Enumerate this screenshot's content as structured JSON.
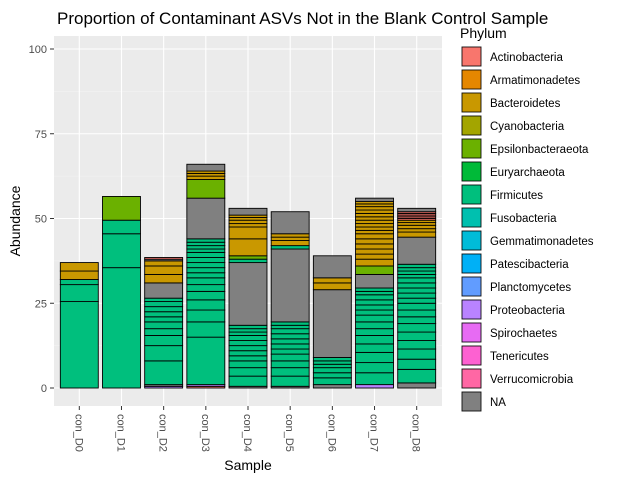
{
  "chart_data": {
    "type": "bar",
    "title": "Proportion of Contaminant ASVs Not in the Blank Control Sample",
    "xlabel": "Sample",
    "ylabel": "Abundance",
    "ylim": [
      0,
      100
    ],
    "yticks": [
      0,
      25,
      50,
      75,
      100
    ],
    "grid": true,
    "legend_title": "Phylum",
    "legend_position": "right",
    "categories": [
      "con_D0",
      "con_D1",
      "con_D2",
      "con_D3",
      "con_D4",
      "con_D5",
      "con_D6",
      "con_D7",
      "con_D8"
    ],
    "legend": [
      {
        "name": "Actinobacteria",
        "color": "#F8766D"
      },
      {
        "name": "Armatimonadetes",
        "color": "#E58700"
      },
      {
        "name": "Bacteroidetes",
        "color": "#C99800"
      },
      {
        "name": "Cyanobacteria",
        "color": "#A3A500"
      },
      {
        "name": "Epsilonbacteraeota",
        "color": "#6BB100"
      },
      {
        "name": "Euryarchaeota",
        "color": "#00BA38"
      },
      {
        "name": "Firmicutes",
        "color": "#00BF7D"
      },
      {
        "name": "Fusobacteria",
        "color": "#00C0AF"
      },
      {
        "name": "Gemmatimonadetes",
        "color": "#00BCD8"
      },
      {
        "name": "Patescibacteria",
        "color": "#00B0F6"
      },
      {
        "name": "Planctomycetes",
        "color": "#619CFF"
      },
      {
        "name": "Proteobacteria",
        "color": "#B983FF"
      },
      {
        "name": "Spirochaetes",
        "color": "#E76BF3"
      },
      {
        "name": "Tenericutes",
        "color": "#FD61D1"
      },
      {
        "name": "Verrucomicrobia",
        "color": "#FF67A4"
      },
      {
        "name": "NA",
        "color": "#808080"
      }
    ],
    "bars": [
      {
        "sample": "con_D0",
        "segments": [
          {
            "phylum": "Firmicutes",
            "values": [
              25.5,
              5.0,
              1.5
            ]
          },
          {
            "phylum": "Bacteroidetes",
            "values": [
              2.5,
              2.5
            ]
          }
        ]
      },
      {
        "sample": "con_D1",
        "segments": [
          {
            "phylum": "Firmicutes",
            "values": [
              35.5,
              10.0,
              4.0
            ]
          },
          {
            "phylum": "Epsilonbacteraeota",
            "values": [
              7.0
            ]
          }
        ]
      },
      {
        "sample": "con_D2",
        "segments": [
          {
            "phylum": "Proteobacteria",
            "values": [
              0.5
            ]
          },
          {
            "phylum": "NA",
            "values": [
              0.5
            ]
          },
          {
            "phylum": "Firmicutes",
            "values": [
              7.0,
              4.5,
              3.0,
              2.0,
              2.0,
              1.5,
              1.5,
              1.5,
              1.5,
              1.0
            ]
          },
          {
            "phylum": "NA",
            "values": [
              4.5
            ]
          },
          {
            "phylum": "Bacteroidetes",
            "values": [
              2.5,
              2.5,
              1.5
            ]
          },
          {
            "phylum": "NA",
            "values": [
              0.5
            ]
          },
          {
            "phylum": "Actinobacteria",
            "values": [
              0.5
            ]
          }
        ]
      },
      {
        "sample": "con_D3",
        "segments": [
          {
            "phylum": "Actinobacteria",
            "values": [
              0.5
            ]
          },
          {
            "phylum": "Proteobacteria",
            "values": [
              0.5
            ]
          },
          {
            "phylum": "Firmicutes",
            "values": [
              14.0,
              4.5,
              3.5,
              3.0,
              2.5,
              2.0,
              2.0,
              1.5,
              1.5,
              1.5,
              1.5,
              1.5,
              1.0,
              1.0,
              1.0,
              1.0
            ]
          },
          {
            "phylum": "NA",
            "values": [
              12.0
            ]
          },
          {
            "phylum": "Epsilonbacteraeota",
            "values": [
              5.5
            ]
          },
          {
            "phylum": "Bacteroidetes",
            "values": [
              1.0,
              0.8,
              0.7
            ]
          },
          {
            "phylum": "NA",
            "values": [
              2.0
            ]
          }
        ]
      },
      {
        "sample": "con_D4",
        "segments": [
          {
            "phylum": "NA",
            "values": [
              0.5
            ]
          },
          {
            "phylum": "Firmicutes",
            "values": [
              3.0,
              2.5,
              2.0,
              1.5,
              1.5,
              1.5,
              1.5,
              1.5,
              1.0,
              1.0,
              1.0
            ]
          },
          {
            "phylum": "NA",
            "values": [
              18.5
            ]
          },
          {
            "phylum": "Firmicutes",
            "values": [
              1.0
            ]
          },
          {
            "phylum": "Epsilonbacteraeota",
            "values": [
              1.0
            ]
          },
          {
            "phylum": "Bacteroidetes",
            "values": [
              5.0,
              3.5,
              1.0,
              1.0,
              0.8,
              0.7
            ]
          },
          {
            "phylum": "NA",
            "values": [
              2.0
            ]
          }
        ]
      },
      {
        "sample": "con_D5",
        "segments": [
          {
            "phylum": "NA",
            "values": [
              0.5
            ]
          },
          {
            "phylum": "Firmicutes",
            "values": [
              3.0,
              2.5,
              2.0,
              2.0,
              1.5,
              1.5,
              1.5,
              1.5,
              1.5,
              1.0,
              1.0
            ]
          },
          {
            "phylum": "NA",
            "values": [
              21.5
            ]
          },
          {
            "phylum": "Firmicutes",
            "values": [
              1.0
            ]
          },
          {
            "phylum": "Bacteroidetes",
            "values": [
              1.5,
              1.0,
              1.0
            ]
          },
          {
            "phylum": "NA",
            "values": [
              6.5
            ]
          }
        ]
      },
      {
        "sample": "con_D6",
        "segments": [
          {
            "phylum": "NA",
            "values": [
              1.0
            ]
          },
          {
            "phylum": "Firmicutes",
            "values": [
              2.0,
              1.5,
              1.5,
              1.0,
              1.0,
              1.0
            ]
          },
          {
            "phylum": "NA",
            "values": [
              20.0
            ]
          },
          {
            "phylum": "Bacteroidetes",
            "values": [
              2.0,
              1.5
            ]
          },
          {
            "phylum": "NA",
            "values": [
              6.5
            ]
          }
        ]
      },
      {
        "sample": "con_D7",
        "segments": [
          {
            "phylum": "Proteobacteria",
            "values": [
              1.0
            ]
          },
          {
            "phylum": "Firmicutes",
            "values": [
              3.5,
              3.0,
              3.0,
              2.5,
              2.5,
              2.0,
              2.0,
              2.0,
              1.5,
              1.5,
              1.5,
              1.5,
              1.0,
              1.0
            ]
          },
          {
            "phylum": "NA",
            "values": [
              4.0
            ]
          },
          {
            "phylum": "Epsilonbacteraeota",
            "values": [
              2.5
            ]
          },
          {
            "phylum": "Bacteroidetes",
            "values": [
              2.0,
              1.5,
              1.5,
              1.5,
              1.5,
              1.5,
              1.0,
              1.0,
              1.0,
              1.0,
              1.0,
              1.0,
              1.0,
              1.0,
              0.8,
              0.7
            ]
          },
          {
            "phylum": "NA",
            "values": [
              1.0
            ]
          }
        ]
      },
      {
        "sample": "con_D8",
        "segments": [
          {
            "phylum": "NA",
            "values": [
              1.5
            ]
          },
          {
            "phylum": "Firmicutes",
            "values": [
              4.0,
              3.0,
              3.0,
              2.5,
              2.5,
              2.5,
              2.0,
              2.0,
              2.0,
              1.5,
              1.5,
              1.5,
              1.5,
              1.5,
              1.0,
              1.0,
              1.0,
              1.0
            ]
          },
          {
            "phylum": "NA",
            "values": [
              8.0
            ]
          },
          {
            "phylum": "Bacteroidetes",
            "values": [
              1.5,
              1.0,
              1.0,
              0.8,
              0.7
            ]
          },
          {
            "phylum": "Actinobacteria",
            "values": [
              0.5,
              0.5,
              0.5,
              0.5,
              0.5
            ]
          },
          {
            "phylum": "NA",
            "values": [
              1.0
            ]
          }
        ]
      }
    ]
  }
}
